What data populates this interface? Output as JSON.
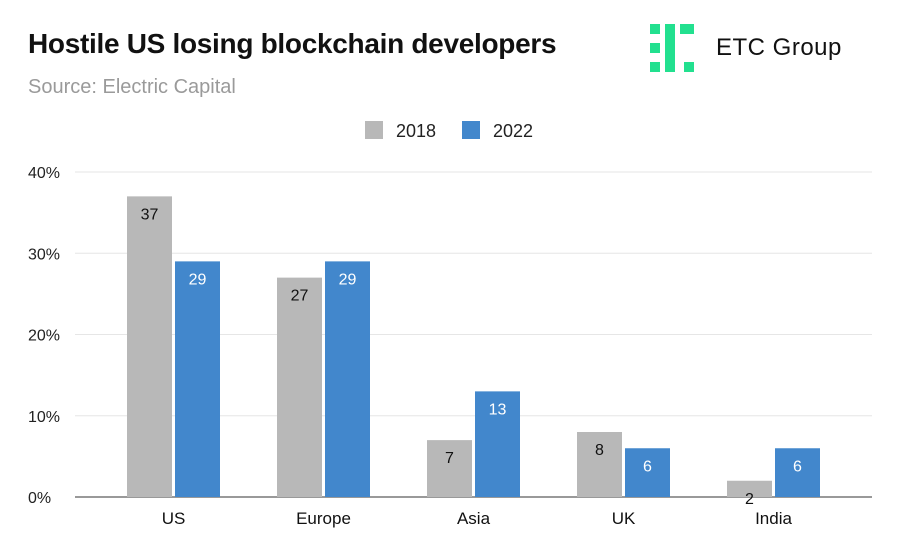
{
  "header": {
    "title": "Hostile US losing blockchain developers",
    "subtitle": "Source: Electric Capital",
    "brand": "ETC Group"
  },
  "colors": {
    "series_2018": "#b8b8b8",
    "series_2022": "#4287cc",
    "logo_green": "#22e08f",
    "gridline": "#e6e6e6",
    "axis": "#333333"
  },
  "chart_data": {
    "type": "bar",
    "title": "Hostile US losing blockchain developers",
    "subtitle": "Source: Electric Capital",
    "categories": [
      "US",
      "Europe",
      "Asia",
      "UK",
      "India"
    ],
    "series": [
      {
        "name": "2018",
        "values": [
          37,
          27,
          7,
          8,
          2
        ]
      },
      {
        "name": "2022",
        "values": [
          29,
          29,
          13,
          6,
          6
        ]
      }
    ],
    "yticks": [
      "0%",
      "10%",
      "20%",
      "30%",
      "40%"
    ],
    "ytick_values": [
      0,
      10,
      20,
      30,
      40
    ],
    "ylim": [
      0,
      40
    ],
    "xlabel": "",
    "ylabel": "",
    "legend_position": "top-center",
    "grid": true
  }
}
